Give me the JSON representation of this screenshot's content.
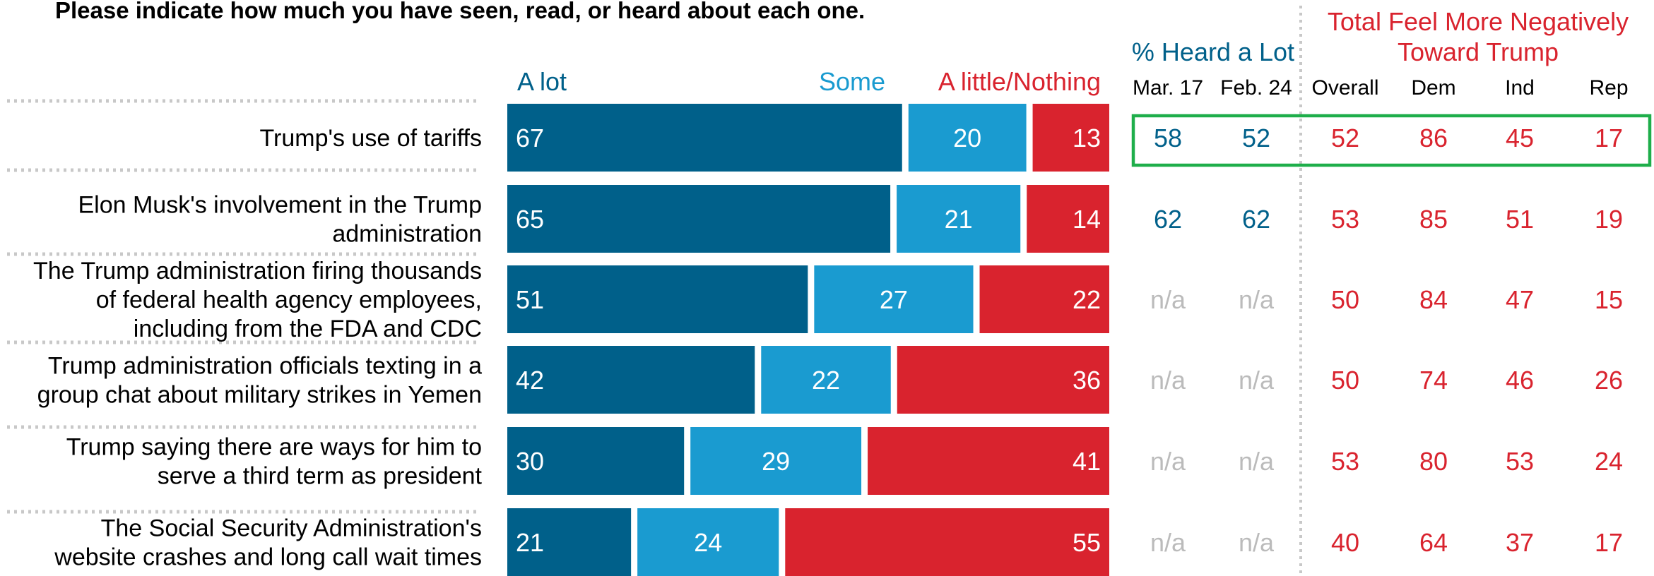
{
  "question": "Please indicate how much you have seen, read, or heard about each one.",
  "colors": {
    "a_lot": "#00608A",
    "some": "#1A9BD0",
    "little": "#D9232E",
    "heard_text": "#00608A",
    "neg_text": "#D9232E",
    "na_text": "#BBBBBB",
    "highlight": "#1EAE4A",
    "question_text": "#000000"
  },
  "chart_data": {
    "type": "bar",
    "orientation": "horizontal",
    "stacked": true,
    "normalized": true,
    "categories": [
      "Trump's use of tariffs",
      "Elon Musk's involvement in the Trump administration",
      "The Trump administration firing thousands of federal health agency employees, including from the FDA and CDC",
      "Trump administration officials texting in a group chat about military strikes in Yemen",
      "Trump saying there are ways for him to serve a third term as president",
      "The Social Security Administration's website crashes and long call wait times"
    ],
    "category_lines": [
      [
        "Trump's use of tariffs"
      ],
      [
        "Elon Musk's involvement in the Trump",
        "administration"
      ],
      [
        "The Trump administration firing thousands",
        "of federal health agency employees,",
        "including from the FDA and CDC"
      ],
      [
        "Trump administration officials texting in a",
        "group chat about military strikes in Yemen"
      ],
      [
        "Trump saying there are ways for him to",
        "serve a third term as president"
      ],
      [
        "The Social Security Administration's",
        "website crashes and long call wait times"
      ]
    ],
    "series": [
      {
        "name": "A lot",
        "values": [
          67,
          65,
          51,
          42,
          30,
          21
        ]
      },
      {
        "name": "Some",
        "values": [
          20,
          21,
          27,
          22,
          29,
          24
        ]
      },
      {
        "name": "A little/Nothing",
        "values": [
          13,
          14,
          22,
          36,
          41,
          55
        ]
      }
    ],
    "xlim": [
      0,
      100
    ],
    "grid": false,
    "legend_position": "top",
    "table": {
      "heard_group": {
        "title": "% Heard a Lot",
        "columns": [
          "Mar. 17",
          "Feb. 24"
        ],
        "rows": [
          [
            "58",
            "52"
          ],
          [
            "62",
            "62"
          ],
          [
            "n/a",
            "n/a"
          ],
          [
            "n/a",
            "n/a"
          ],
          [
            "n/a",
            "n/a"
          ],
          [
            "n/a",
            "n/a"
          ]
        ]
      },
      "negative_group": {
        "title_lines": [
          "Total Feel More Negatively",
          "Toward Trump"
        ],
        "columns": [
          "Overall",
          "Dem",
          "Ind",
          "Rep"
        ],
        "rows": [
          [
            "52",
            "86",
            "45",
            "17"
          ],
          [
            "53",
            "85",
            "51",
            "19"
          ],
          [
            "50",
            "84",
            "47",
            "15"
          ],
          [
            "50",
            "74",
            "46",
            "26"
          ],
          [
            "53",
            "80",
            "53",
            "24"
          ],
          [
            "40",
            "64",
            "37",
            "17"
          ]
        ]
      },
      "highlighted_row": 0
    }
  }
}
